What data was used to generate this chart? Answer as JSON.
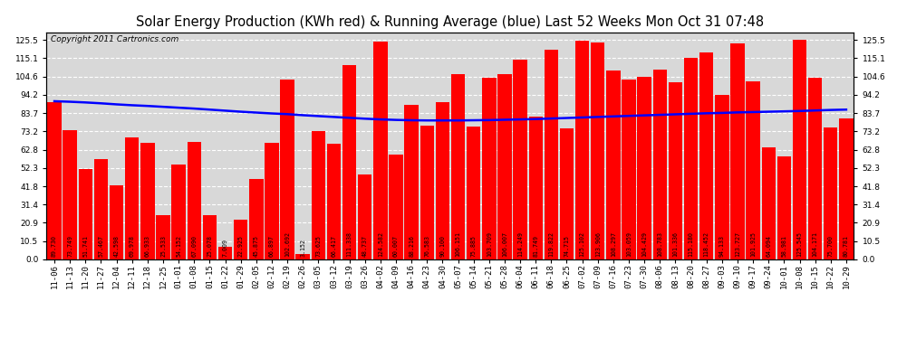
{
  "title": "Solar Energy Production (KWh red) & Running Average (blue) Last 52 Weeks Mon Oct 31 07:48",
  "copyright": "Copyright 2011 Cartronics.com",
  "categories": [
    "11-06",
    "11-13",
    "11-20",
    "11-27",
    "12-04",
    "12-11",
    "12-18",
    "12-25",
    "01-01",
    "01-08",
    "01-15",
    "01-22",
    "01-29",
    "02-05",
    "02-12",
    "02-19",
    "02-26",
    "03-05",
    "03-12",
    "03-19",
    "03-26",
    "04-02",
    "04-09",
    "04-16",
    "04-23",
    "04-30",
    "05-07",
    "05-14",
    "05-21",
    "05-28",
    "06-04",
    "06-11",
    "06-18",
    "06-25",
    "07-02",
    "07-09",
    "07-16",
    "07-23",
    "07-30",
    "08-06",
    "08-13",
    "08-20",
    "08-27",
    "09-03",
    "09-10",
    "09-17",
    "09-24",
    "10-01",
    "10-08",
    "10-15",
    "10-22",
    "10-29"
  ],
  "values": [
    89.73,
    73.749,
    51.741,
    57.467,
    42.598,
    69.978,
    66.933,
    25.533,
    54.152,
    67.09,
    25.078,
    7.009,
    22.925,
    45.875,
    66.897,
    102.692,
    3.152,
    73.625,
    66.417,
    111.338,
    48.737,
    124.582,
    60.007,
    88.216,
    76.583,
    90.1,
    106.151,
    75.885,
    103.709,
    106.007,
    114.249,
    81.749,
    119.822,
    74.715,
    125.102,
    123.906,
    108.297,
    103.059,
    104.429,
    108.783,
    101.336,
    115.18,
    118.452,
    94.133,
    123.727,
    101.925,
    64.094,
    58.981,
    125.545,
    104.171,
    75.7,
    80.781
  ],
  "running_avg": [
    90.5,
    90.2,
    89.8,
    89.3,
    88.7,
    88.2,
    87.8,
    87.3,
    86.8,
    86.3,
    85.7,
    85.1,
    84.5,
    84.0,
    83.5,
    83.1,
    82.5,
    82.0,
    81.5,
    81.0,
    80.5,
    80.1,
    79.8,
    79.6,
    79.5,
    79.5,
    79.5,
    79.6,
    79.7,
    79.9,
    80.1,
    80.3,
    80.6,
    80.9,
    81.2,
    81.5,
    81.8,
    82.1,
    82.4,
    82.7,
    83.0,
    83.3,
    83.6,
    83.8,
    84.1,
    84.3,
    84.5,
    84.7,
    84.9,
    85.2,
    85.5,
    85.7
  ],
  "bar_color": "#ff0000",
  "line_color": "#0000ff",
  "background_color": "#ffffff",
  "plot_bg_color": "#d8d8d8",
  "grid_color": "#ffffff",
  "yticks": [
    0.0,
    10.5,
    20.9,
    31.4,
    41.8,
    52.3,
    62.8,
    73.2,
    83.7,
    94.2,
    104.6,
    115.1,
    125.5
  ],
  "ylim_max": 130,
  "title_fontsize": 10.5,
  "tick_fontsize": 6.5,
  "value_fontsize": 4.8,
  "copyright_fontsize": 6.5
}
